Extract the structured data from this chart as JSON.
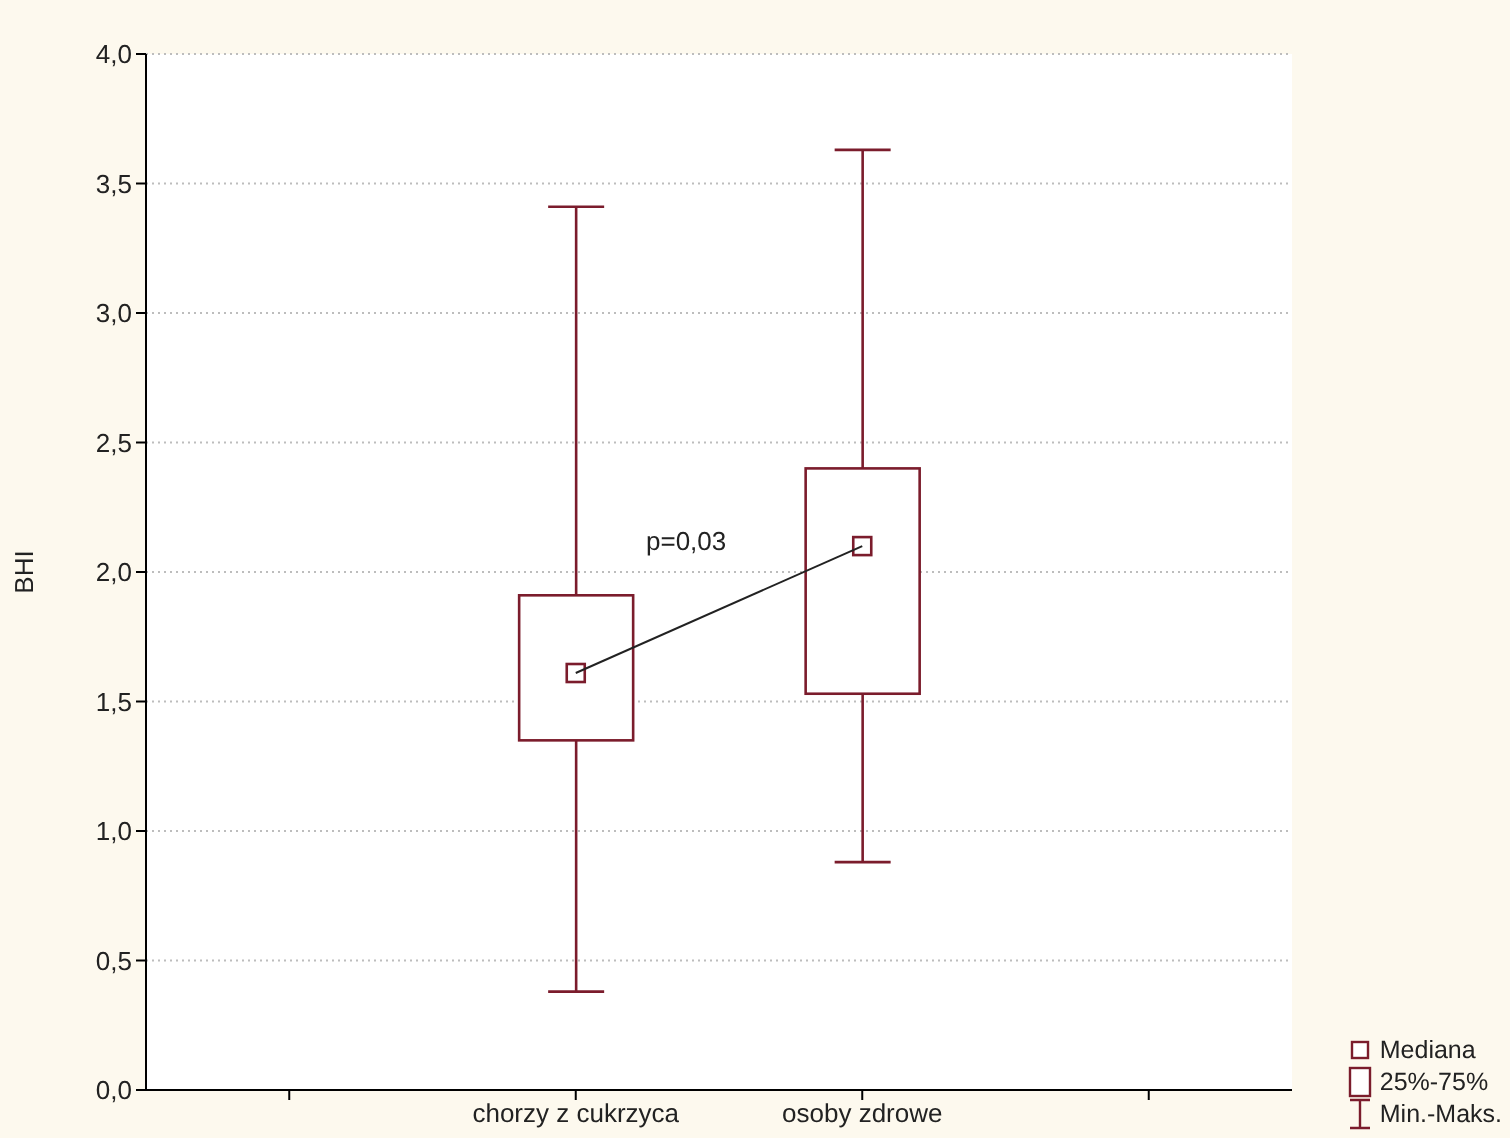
{
  "chart_data": {
    "type": "box",
    "ylabel": "BHI",
    "categories": [
      null,
      "chorzy z cukrzyca",
      "osoby zdrowe",
      null
    ],
    "boxes": [
      null,
      {
        "low": 0.38,
        "q1": 1.35,
        "median": 1.61,
        "q3": 1.91,
        "high": 3.41
      },
      {
        "low": 0.88,
        "q1": 1.53,
        "median": 2.1,
        "q3": 2.4,
        "high": 3.63
      },
      null
    ],
    "color": "#7b1c2c",
    "ylim": [
      0,
      4
    ],
    "yticks": [
      {
        "value": 0,
        "label": "0,0"
      },
      {
        "value": 0.5,
        "label": "0,5"
      },
      {
        "value": 1,
        "label": "1,0"
      },
      {
        "value": 1.5,
        "label": "1,5"
      },
      {
        "value": 2,
        "label": "2,0"
      },
      {
        "value": 2.5,
        "label": "2,5"
      },
      {
        "value": 3,
        "label": "3,0"
      },
      {
        "value": 3.5,
        "label": "3,5"
      },
      {
        "value": 4,
        "label": "4,0"
      }
    ],
    "grid": "y",
    "annotations": [
      "p=0,03",
      "Mediana",
      "25%-75%",
      "Min.-Maks."
    ]
  }
}
